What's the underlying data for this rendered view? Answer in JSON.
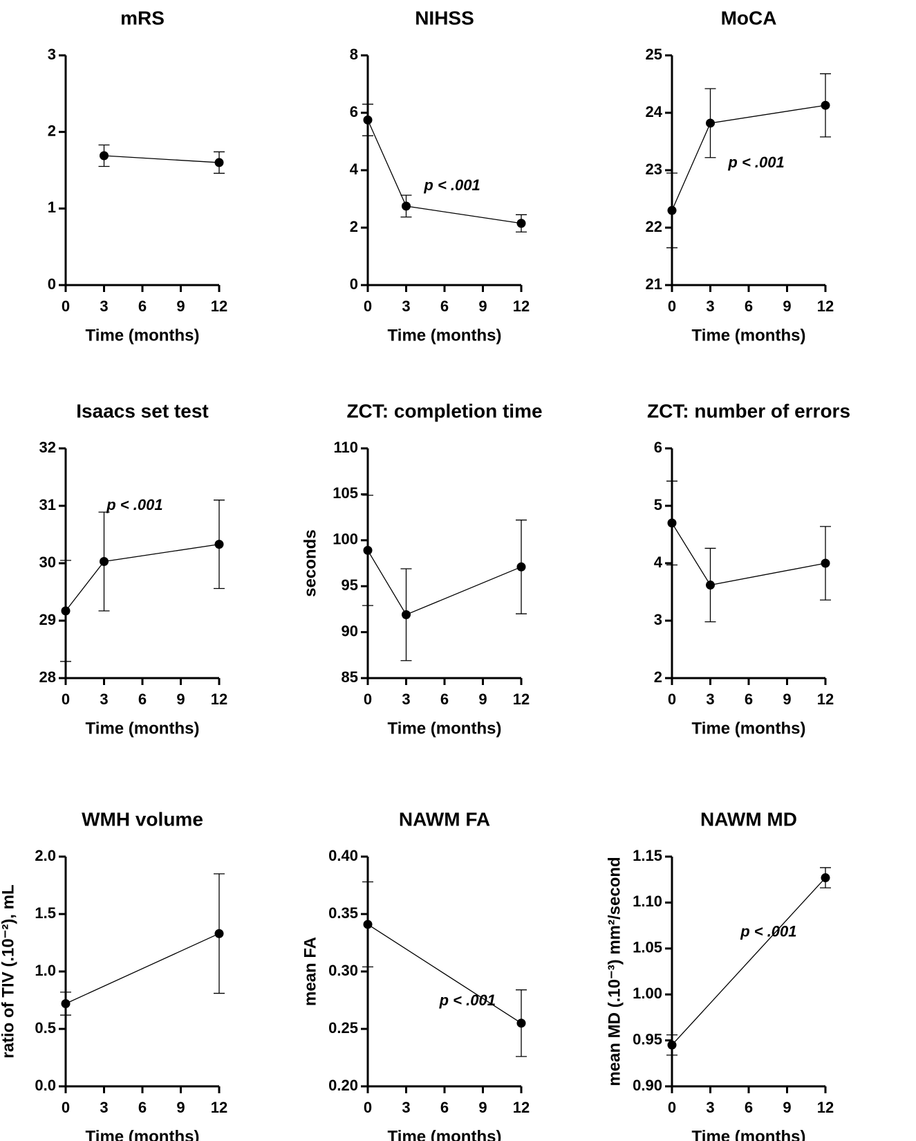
{
  "chart_data": [
    {
      "type": "line",
      "title": "mRS",
      "x_label": "Time (months)",
      "x": [
        3,
        12
      ],
      "values": [
        1.69,
        1.6
      ],
      "errors": [
        0.14,
        0.14
      ],
      "xlim": [
        0,
        12
      ],
      "xticks": [
        0,
        3,
        6,
        9,
        12
      ],
      "ylim": [
        0,
        3
      ],
      "yticks": [
        0,
        1,
        2,
        3
      ],
      "color": "#000000"
    },
    {
      "type": "line",
      "title": "NIHSS",
      "x_label": "Time (months)",
      "annotation": "p < .001",
      "x": [
        0,
        3,
        12
      ],
      "values": [
        5.75,
        2.75,
        2.15
      ],
      "errors": [
        0.55,
        0.38,
        0.3
      ],
      "xlim": [
        0,
        12
      ],
      "xticks": [
        0,
        3,
        6,
        9,
        12
      ],
      "ylim": [
        0,
        8
      ],
      "yticks": [
        0,
        2,
        4,
        6,
        8
      ],
      "color": "#000000"
    },
    {
      "type": "line",
      "title": "MoCA",
      "x_label": "Time (months)",
      "annotation": "p < .001",
      "x": [
        0,
        3,
        12
      ],
      "values": [
        22.3,
        23.82,
        24.13
      ],
      "errors": [
        0.65,
        0.6,
        0.55
      ],
      "xlim": [
        0,
        12
      ],
      "xticks": [
        0,
        3,
        6,
        9,
        12
      ],
      "ylim": [
        21,
        25
      ],
      "yticks": [
        21,
        22,
        23,
        24,
        25
      ],
      "color": "#000000"
    },
    {
      "type": "line",
      "title": "Isaacs set test",
      "x_label": "Time (months)",
      "annotation": "p < .001",
      "x": [
        0,
        3,
        12
      ],
      "values": [
        29.17,
        30.03,
        30.33
      ],
      "errors": [
        0.88,
        0.86,
        0.77
      ],
      "xlim": [
        0,
        12
      ],
      "xticks": [
        0,
        3,
        6,
        9,
        12
      ],
      "ylim": [
        28,
        32
      ],
      "yticks": [
        28,
        29,
        30,
        31,
        32
      ],
      "color": "#000000"
    },
    {
      "type": "line",
      "title": "ZCT: completion time",
      "x_label": "Time (months)",
      "y_label": "seconds",
      "x": [
        0,
        3,
        12
      ],
      "values": [
        98.9,
        91.9,
        97.1
      ],
      "errors": [
        6,
        5,
        5.1
      ],
      "xlim": [
        0,
        12
      ],
      "xticks": [
        0,
        3,
        6,
        9,
        12
      ],
      "ylim": [
        85,
        110
      ],
      "yticks": [
        85,
        90,
        95,
        100,
        105,
        110
      ],
      "color": "#000000"
    },
    {
      "type": "line",
      "title": "ZCT: number of errors",
      "x_label": "Time (months)",
      "x": [
        0,
        3,
        12
      ],
      "values": [
        4.7,
        3.62,
        4.0
      ],
      "errors": [
        0.73,
        0.64,
        0.64
      ],
      "xlim": [
        0,
        12
      ],
      "xticks": [
        0,
        3,
        6,
        9,
        12
      ],
      "ylim": [
        2,
        6
      ],
      "yticks": [
        2,
        3,
        4,
        5,
        6
      ],
      "color": "#000000"
    },
    {
      "type": "line",
      "title": "WMH volume",
      "x_label": "Time (months)",
      "y_label": "ratio of TIV (.10⁻²), mL",
      "x": [
        0,
        12
      ],
      "values": [
        0.72,
        1.33
      ],
      "errors": [
        0.1,
        0.52
      ],
      "xlim": [
        0,
        12
      ],
      "xticks": [
        0,
        3,
        6,
        9,
        12
      ],
      "ylim": [
        0,
        2
      ],
      "yticks": [
        {
          "value": 0,
          "label": "0.0"
        },
        0.5,
        {
          "value": 1,
          "label": "1.0"
        },
        1.5,
        {
          "value": 2,
          "label": "2.0"
        }
      ],
      "color": "#000000"
    },
    {
      "type": "line",
      "title": "NAWM FA",
      "x_label": "Time (months)",
      "y_label": "mean FA",
      "annotation": "p < .001",
      "x": [
        0,
        12
      ],
      "values": [
        0.341,
        0.255
      ],
      "errors": [
        0.037,
        0.029
      ],
      "xlim": [
        0,
        12
      ],
      "xticks": [
        0,
        3,
        6,
        9,
        12
      ],
      "ylim": [
        0.2,
        0.4
      ],
      "yticks": [
        {
          "value": 0.2,
          "label": "0.20"
        },
        0.25,
        {
          "value": 0.3,
          "label": "0.30"
        },
        0.35,
        {
          "value": 0.4,
          "label": "0.40"
        }
      ],
      "color": "#000000"
    },
    {
      "type": "line",
      "title": "NAWM MD",
      "x_label": "Time (months)",
      "y_label": "mean MD (.10⁻³) mm²/second",
      "annotation": "p < .001",
      "x": [
        0,
        12
      ],
      "values": [
        0.945,
        1.127
      ],
      "errors": [
        0.011,
        0.011
      ],
      "xlim": [
        0,
        12
      ],
      "xticks": [
        0,
        3,
        6,
        9,
        12
      ],
      "ylim": [
        0.9,
        1.15
      ],
      "yticks": [
        {
          "value": 0.9,
          "label": "0.90"
        },
        0.95,
        {
          "value": 1,
          "label": "1.00"
        },
        1.05,
        {
          "value": 1.1,
          "label": "1.10"
        },
        1.15
      ],
      "color": "#000000"
    }
  ]
}
